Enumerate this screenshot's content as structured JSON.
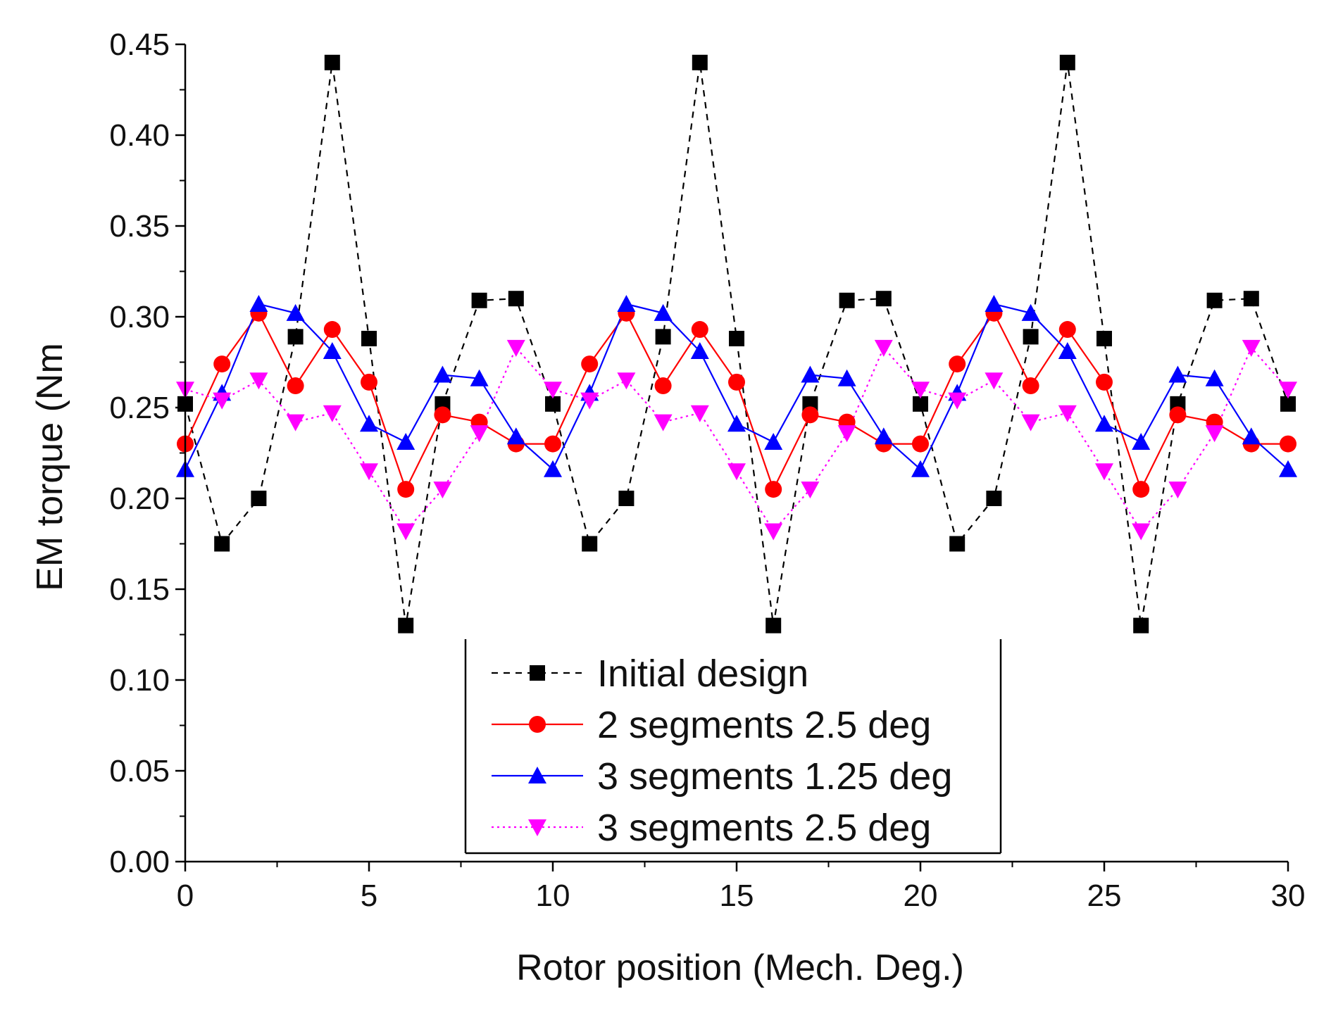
{
  "chart_data": {
    "type": "line",
    "xlabel": "Rotor position (Mech. Deg.)",
    "ylabel": "EM torque (Nm",
    "xlim": [
      0,
      30
    ],
    "ylim": [
      0,
      0.45
    ],
    "x_ticks": [
      0,
      5,
      10,
      15,
      20,
      25,
      30
    ],
    "x_tick_labels": [
      "0",
      "5",
      "10",
      "15",
      "20",
      "25",
      "30"
    ],
    "y_ticks": [
      0,
      0.05,
      0.1,
      0.15,
      0.2,
      0.25,
      0.3,
      0.35,
      0.4,
      0.45
    ],
    "y_tick_labels": [
      "0.00",
      "0.05",
      "0.10",
      "0.15",
      "0.20",
      "0.25",
      "0.30",
      "0.35",
      "0.40",
      "0.45"
    ],
    "grid": false,
    "legend_position": "bottom-center",
    "x": [
      0,
      1,
      2,
      3,
      4,
      5,
      6,
      7,
      8,
      9,
      10,
      11,
      12,
      13,
      14,
      15,
      16,
      17,
      18,
      19,
      20,
      21,
      22,
      23,
      24,
      25,
      26,
      27,
      28,
      29,
      30
    ],
    "series": [
      {
        "name": "Initial design",
        "color": "#000000",
        "marker": "square",
        "line_style": "dashed",
        "values": [
          0.252,
          0.175,
          0.2,
          0.289,
          0.44,
          0.288,
          0.13,
          0.252,
          0.309,
          0.31,
          0.252,
          0.175,
          0.2,
          0.289,
          0.44,
          0.288,
          0.13,
          0.252,
          0.309,
          0.31,
          0.252,
          0.175,
          0.2,
          0.289,
          0.44,
          0.288,
          0.13,
          0.252,
          0.309,
          0.31,
          0.252
        ]
      },
      {
        "name": "2 segments 2.5 deg",
        "color": "#ff0000",
        "marker": "circle",
        "line_style": "solid",
        "values": [
          0.23,
          0.274,
          0.302,
          0.262,
          0.293,
          0.264,
          0.205,
          0.246,
          0.242,
          0.23,
          0.23,
          0.274,
          0.302,
          0.262,
          0.293,
          0.264,
          0.205,
          0.246,
          0.242,
          0.23,
          0.23,
          0.274,
          0.302,
          0.262,
          0.293,
          0.264,
          0.205,
          0.246,
          0.242,
          0.23,
          0.23
        ]
      },
      {
        "name": "3 segments 1.25 deg",
        "color": "#0000ff",
        "marker": "triangle-up",
        "line_style": "solid",
        "values": [
          0.216,
          0.258,
          0.307,
          0.302,
          0.281,
          0.241,
          0.231,
          0.268,
          0.266,
          0.234,
          0.216,
          0.258,
          0.307,
          0.302,
          0.281,
          0.241,
          0.231,
          0.268,
          0.266,
          0.234,
          0.216,
          0.258,
          0.307,
          0.302,
          0.281,
          0.241,
          0.231,
          0.268,
          0.266,
          0.234,
          0.216
        ]
      },
      {
        "name": "3 segments 2.5 deg",
        "color": "#ff00ff",
        "marker": "triangle-down",
        "line_style": "dotted",
        "values": [
          0.26,
          0.254,
          0.265,
          0.242,
          0.247,
          0.215,
          0.182,
          0.205,
          0.236,
          0.283,
          0.26,
          0.254,
          0.265,
          0.242,
          0.247,
          0.215,
          0.182,
          0.205,
          0.236,
          0.283,
          0.26,
          0.254,
          0.265,
          0.242,
          0.247,
          0.215,
          0.182,
          0.205,
          0.236,
          0.283,
          0.26
        ]
      }
    ]
  }
}
